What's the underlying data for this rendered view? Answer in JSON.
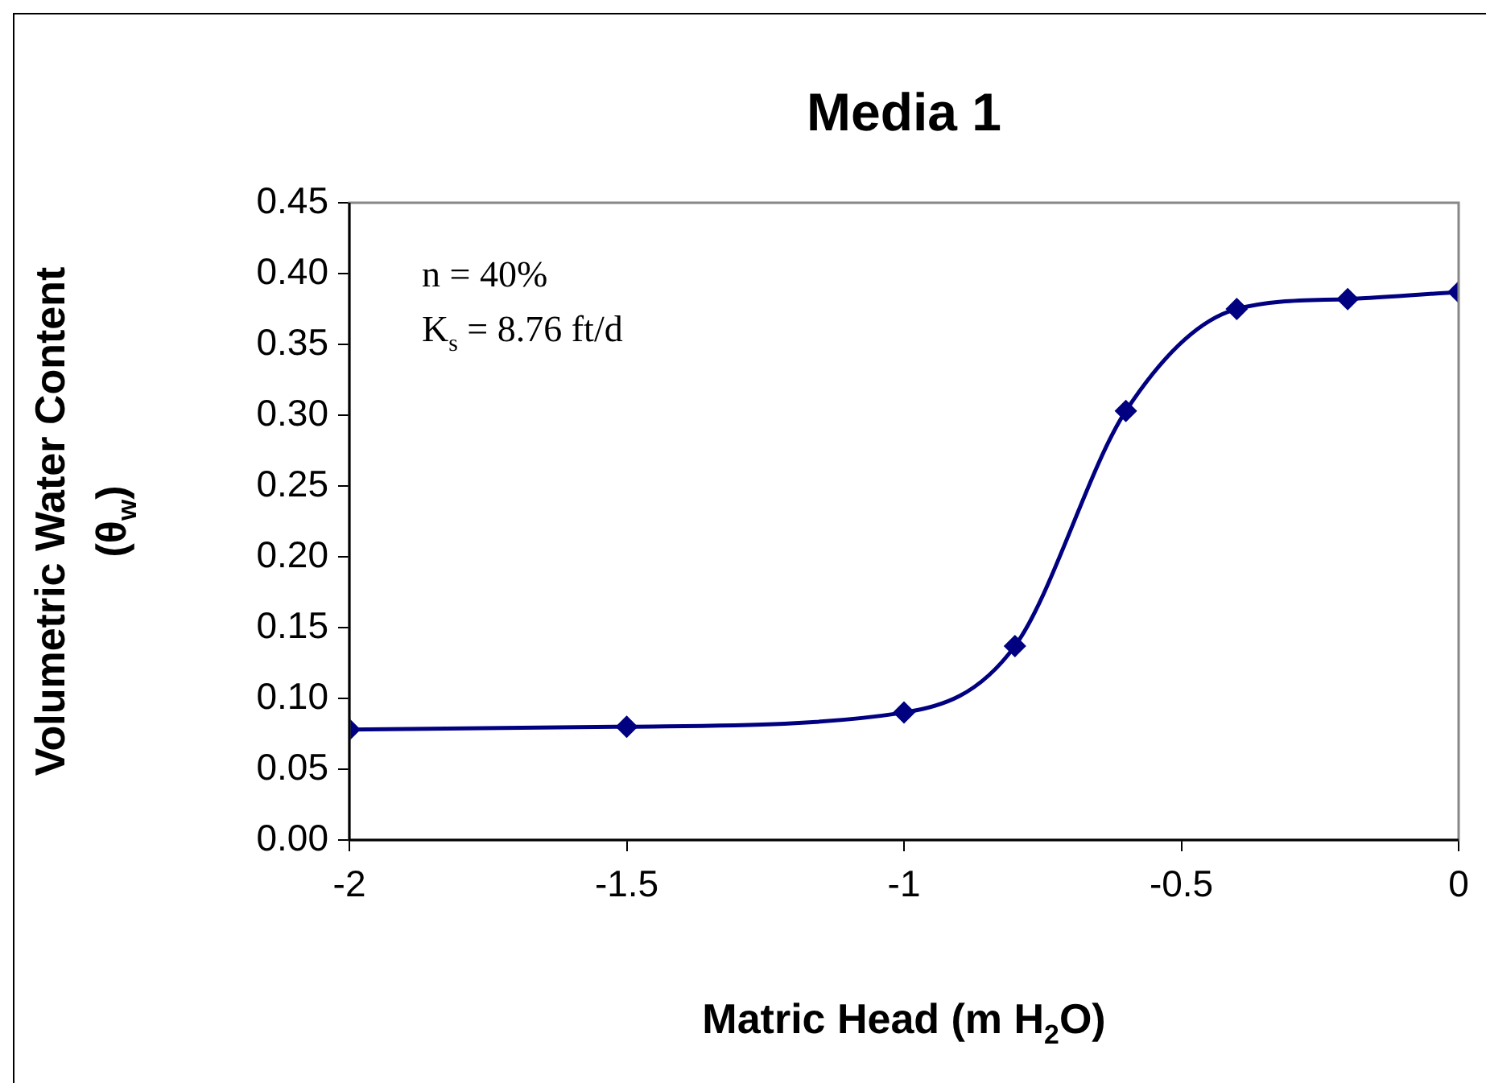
{
  "chart_data": {
    "type": "line",
    "title": "Media 1",
    "xlabel": "Matric Head (m H$_{2}$O)",
    "ylabel": "Volumetric Water Content (θ$_{w}$)",
    "annotations": [
      "n = 40%",
      "K$_{s}$ = 8.76 ft/d"
    ],
    "x": [
      -2,
      -1.5,
      -1,
      -0.8,
      -0.6,
      -0.4,
      -0.2,
      0
    ],
    "series": [
      {
        "color": "#000080",
        "values": [
          0.078,
          0.08,
          0.09,
          0.137,
          0.303,
          0.375,
          0.382,
          0.387
        ]
      }
    ],
    "xlim": [
      -2,
      0
    ],
    "xticks": [
      -2,
      -1.5,
      -1,
      -0.5,
      0
    ],
    "ylim": [
      0,
      0.45
    ],
    "yticks": [
      {
        "value": 0,
        "label": "0.00"
      },
      0.05,
      {
        "value": 0.1,
        "label": "0.10"
      },
      0.15,
      {
        "value": 0.2,
        "label": "0.20"
      },
      0.25,
      {
        "value": 0.3,
        "label": "0.30"
      },
      0.35,
      {
        "value": 0.4,
        "label": "0.40"
      },
      0.45
    ],
    "marker": "diamond",
    "line_style": "solid",
    "grid": false,
    "legend": false
  }
}
